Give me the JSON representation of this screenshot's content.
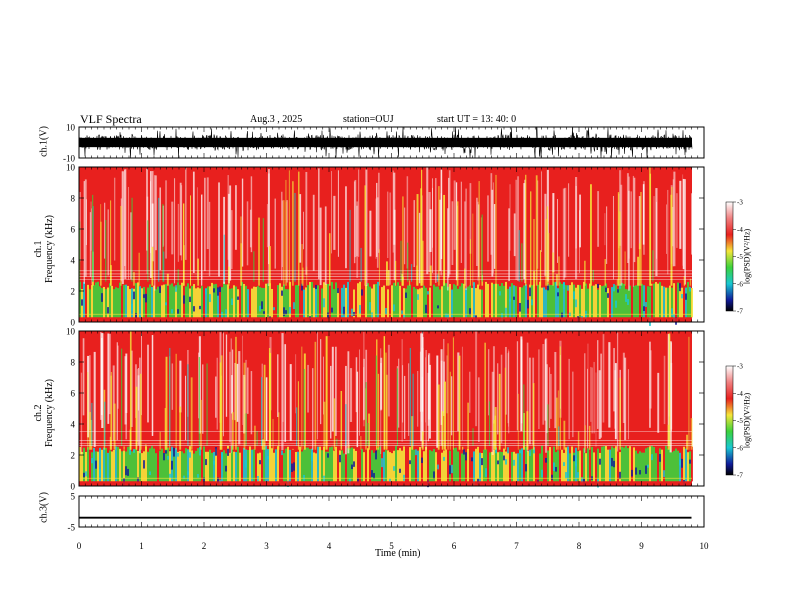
{
  "header": {
    "title": "VLF Spectra",
    "date": "Aug.3 , 2025",
    "station": "station=OUJ",
    "start": "start UT = 13: 40: 0"
  },
  "colors": {
    "high": "#e8201e",
    "mid": "#f5e63a",
    "green": "#3cd23c",
    "cyan": "#19c8d2",
    "low": "#101a9a"
  },
  "chart_data": [
    {
      "type": "line",
      "panel": "ch1-waveform",
      "ylabel": "ch.1(V)",
      "ylim": [
        -10,
        10
      ],
      "yticks": [
        "10",
        "-10"
      ],
      "xlim": [
        0,
        10
      ]
    },
    {
      "type": "heatmap",
      "panel": "ch1-spectrogram",
      "ylabel": "ch.1\nFrequency (kHz)",
      "ylabel_top": "ch.1",
      "ylabel_bottom": "Frequency (kHz)",
      "ylim": [
        0,
        10
      ],
      "yticks": [
        "0",
        "2",
        "4",
        "6",
        "8",
        "10"
      ],
      "xlim": [
        0,
        10
      ],
      "colorbar": {
        "label": "log(PSD)(V²/Hz)",
        "ticks": [
          "-3",
          "-4",
          "-5",
          "-6",
          "-7"
        ],
        "range": [
          -7,
          -3
        ]
      }
    },
    {
      "type": "heatmap",
      "panel": "ch2-spectrogram",
      "ylabel_top": "ch.2",
      "ylabel_bottom": "Frequency (kHz)",
      "ylim": [
        0,
        10
      ],
      "yticks": [
        "0",
        "2",
        "4",
        "6",
        "8",
        "10"
      ],
      "xlim": [
        0,
        10
      ],
      "colorbar": {
        "label": "log(PSD)(V²/Hz)",
        "ticks": [
          "-3",
          "-4",
          "-5",
          "-6",
          "-7"
        ],
        "range": [
          -7,
          -3
        ]
      }
    },
    {
      "type": "line",
      "panel": "ch3-waveform",
      "ylabel": "ch.3(V)",
      "ylim": [
        -5,
        5
      ],
      "yticks": [
        "5",
        "-5"
      ],
      "x": [
        0,
        9.8
      ],
      "y": [
        -2,
        -2
      ],
      "xlim": [
        0,
        10
      ]
    }
  ],
  "xaxis": {
    "label": "Time (min)",
    "ticks": [
      "0",
      "1",
      "2",
      "3",
      "4",
      "5",
      "6",
      "7",
      "8",
      "9",
      "10"
    ]
  }
}
